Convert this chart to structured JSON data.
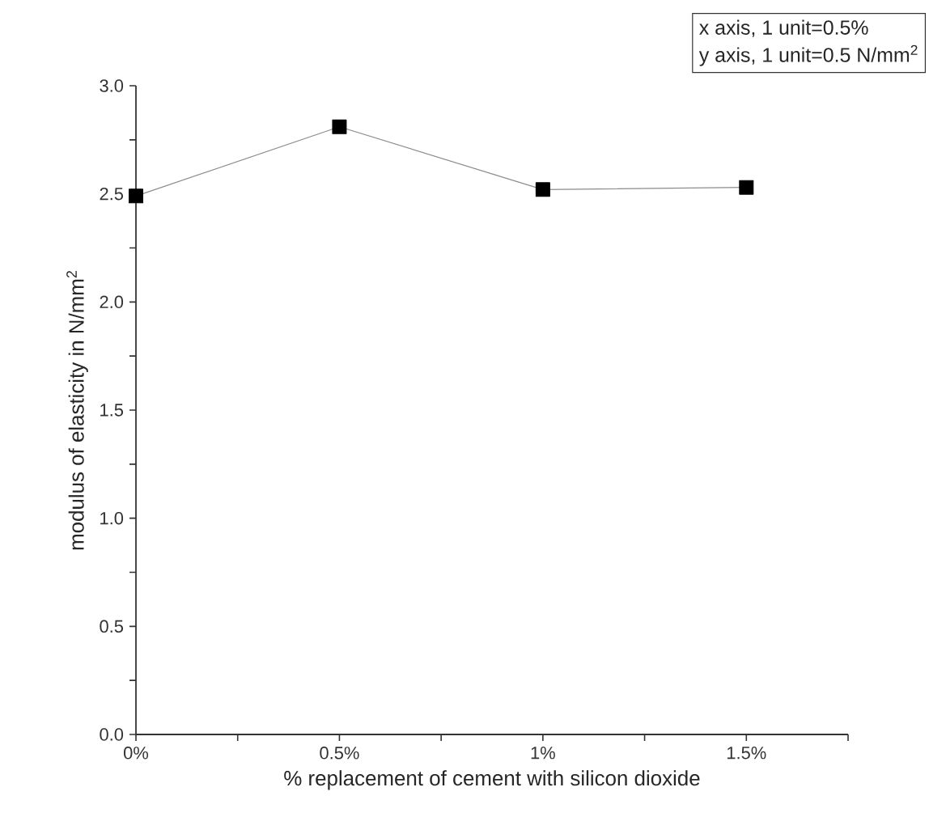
{
  "chart_data": {
    "type": "line",
    "xlabel": "% replacement of cement with silicon dioxide",
    "ylabel": "modulus of elasticity in N/mm$^{2}$",
    "annotations": [
      "x axis, 1 unit=0.5%",
      "y axis, 1 unit=0.5 N/mm$^{2}$"
    ],
    "x": [
      0,
      0.5,
      1,
      1.5
    ],
    "series": [
      {
        "color": "#000000",
        "values": [
          2.49,
          2.81,
          2.52,
          2.53
        ]
      }
    ],
    "xlim": [
      0,
      1.75
    ],
    "xticks": [
      {
        "value": 0,
        "label": "0%"
      },
      {
        "value": 0.25,
        "label": null
      },
      {
        "value": 0.5,
        "label": "0.5%"
      },
      {
        "value": 0.75,
        "label": null
      },
      {
        "value": 1,
        "label": "1%"
      },
      {
        "value": 1.25,
        "label": null
      },
      {
        "value": 1.5,
        "label": "1.5%"
      },
      {
        "value": 1.75,
        "label": null
      }
    ],
    "ylim": [
      0,
      3
    ],
    "yticks": [
      {
        "value": 0,
        "label": "0.0"
      },
      {
        "value": 0.25,
        "label": null
      },
      {
        "value": 0.5,
        "label": "0.5"
      },
      {
        "value": 0.75,
        "label": null
      },
      {
        "value": 1,
        "label": "1.0"
      },
      {
        "value": 1.25,
        "label": null
      },
      {
        "value": 1.5,
        "label": "1.5"
      },
      {
        "value": 1.75,
        "label": null
      },
      {
        "value": 2,
        "label": "2.0"
      },
      {
        "value": 2.25,
        "label": null
      },
      {
        "value": 2.5,
        "label": "2.5"
      },
      {
        "value": 2.75,
        "label": null
      },
      {
        "value": 3,
        "label": "3.0"
      }
    ],
    "grid": false,
    "marker": "square",
    "line_style": "solid"
  }
}
